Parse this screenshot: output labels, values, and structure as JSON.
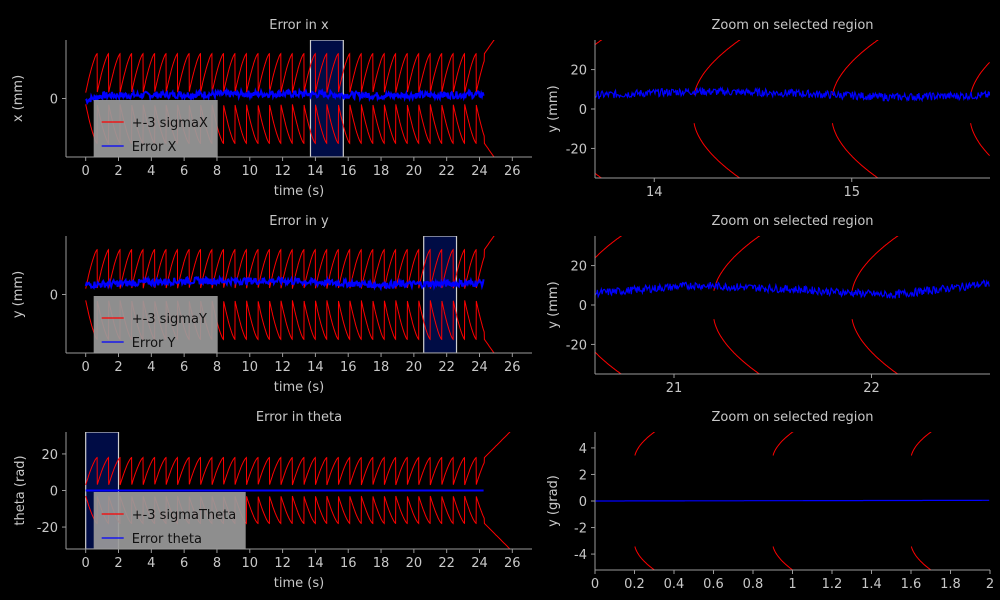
{
  "chart_data": [
    {
      "type": "line",
      "title": "Error in x",
      "xlabel": "time (s)",
      "ylabel": "x (mm)",
      "xlim": [
        -1.2,
        27.2
      ],
      "ylim": [
        -30,
        30
      ],
      "xticks": [
        0,
        2,
        4,
        6,
        8,
        10,
        12,
        14,
        16,
        18,
        20,
        22,
        24,
        26
      ],
      "yticks": [
        0
      ],
      "highlight": [
        13.7,
        15.7
      ],
      "legend_placement": "lower-left",
      "series": [
        {
          "name": "+-3 sigmaX",
          "color": "#ff0000",
          "sigma_band": [
            3,
            20
          ],
          "end": 24.3
        },
        {
          "name": "Error X",
          "color": "#0000ff",
          "values": [
            [
              0,
              -1
            ],
            [
              1,
              1.5
            ],
            [
              6,
              2
            ],
            [
              12,
              2.5
            ],
            [
              18,
              1.5
            ],
            [
              24.3,
              2
            ]
          ]
        }
      ]
    },
    {
      "type": "line",
      "title": "Zoom on selected region",
      "xlabel": "",
      "ylabel": "y (mm)",
      "xlim": [
        13.7,
        15.7
      ],
      "ylim": [
        -35,
        35
      ],
      "xticks": [
        14,
        15
      ],
      "yticks": [
        20,
        0,
        -20
      ],
      "series": [
        {
          "name": "",
          "color": "#ff0000"
        },
        {
          "name": "",
          "color": "#0000ff",
          "values": [
            [
              13.7,
              7
            ],
            [
              14.2,
              9
            ],
            [
              14.7,
              8
            ],
            [
              15.2,
              6
            ],
            [
              15.7,
              7
            ]
          ]
        }
      ]
    },
    {
      "type": "line",
      "title": "Error in y",
      "xlabel": "time (s)",
      "ylabel": "y (mm)",
      "xlim": [
        -1.2,
        27.2
      ],
      "ylim": [
        -30,
        30
      ],
      "xticks": [
        0,
        2,
        4,
        6,
        8,
        10,
        12,
        14,
        16,
        18,
        20,
        22,
        24,
        26
      ],
      "yticks": [
        0
      ],
      "highlight": [
        20.6,
        22.6
      ],
      "legend_placement": "lower-left",
      "series": [
        {
          "name": "+-3 sigmaY",
          "color": "#ff0000",
          "sigma_band": [
            3,
            20
          ],
          "end": 24.3
        },
        {
          "name": "Error Y",
          "color": "#0000ff",
          "values": [
            [
              0,
              5
            ],
            [
              6,
              7
            ],
            [
              12,
              7
            ],
            [
              18,
              5
            ],
            [
              24.3,
              6
            ]
          ]
        }
      ]
    },
    {
      "type": "line",
      "title": "Zoom on selected region",
      "xlabel": "",
      "ylabel": "y (mm)",
      "xlim": [
        20.6,
        22.6
      ],
      "ylim": [
        -35,
        35
      ],
      "xticks": [
        21,
        22
      ],
      "yticks": [
        20,
        0,
        -20
      ],
      "series": [
        {
          "name": "",
          "color": "#ff0000"
        },
        {
          "name": "",
          "color": "#0000ff",
          "values": [
            [
              20.6,
              6
            ],
            [
              21.1,
              10
            ],
            [
              21.6,
              8
            ],
            [
              22.1,
              5
            ],
            [
              22.6,
              11
            ]
          ]
        }
      ]
    },
    {
      "type": "line",
      "title": "Error in theta",
      "xlabel": "time (s)",
      "ylabel": "theta (rad)",
      "xlim": [
        -1.2,
        27.2
      ],
      "ylim": [
        -32,
        32
      ],
      "xticks": [
        0,
        2,
        4,
        6,
        8,
        10,
        12,
        14,
        16,
        18,
        20,
        22,
        24,
        26
      ],
      "yticks": [
        20,
        0,
        -20
      ],
      "highlight": [
        0,
        2
      ],
      "legend_placement": "lower-left",
      "series": [
        {
          "name": "+-3 sigmaTheta",
          "color": "#ff0000",
          "sigma_band": [
            3,
            15
          ],
          "end": 24.3
        },
        {
          "name": "Error theta",
          "color": "#0000ff",
          "values": [
            [
              0,
              0
            ],
            [
              24.3,
              0
            ]
          ]
        }
      ]
    },
    {
      "type": "line",
      "title": "Zoom on selected region",
      "xlabel": "",
      "ylabel": "y (grad)",
      "xlim": [
        0,
        2
      ],
      "ylim": [
        -5.2,
        5.2
      ],
      "xticks": [
        0,
        0.2,
        0.4,
        0.6,
        0.8,
        1,
        1.2,
        1.4,
        1.6,
        1.8,
        2
      ],
      "yticks": [
        4,
        2,
        0,
        -2,
        -4
      ],
      "series": [
        {
          "name": "",
          "color": "#ff0000"
        },
        {
          "name": "",
          "color": "#0000ff",
          "values": [
            [
              0,
              0
            ],
            [
              2,
              0.05
            ]
          ]
        }
      ]
    }
  ]
}
